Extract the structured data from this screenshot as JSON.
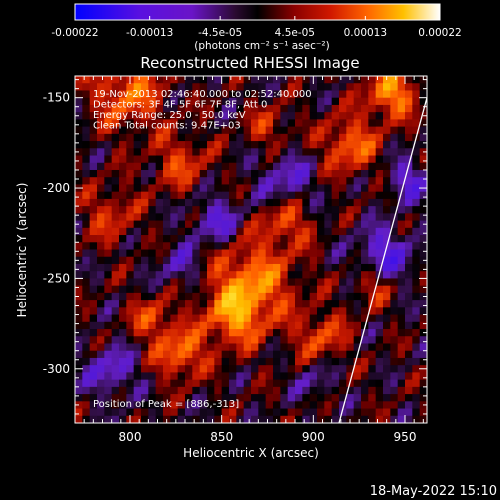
{
  "colorbar": {
    "ticks": [
      "-0.00022",
      "-0.00013",
      "-4.5e-05",
      "4.5e-05",
      "0.00013",
      "0.00022"
    ],
    "tick_values": [
      -0.00022,
      -0.00013,
      -4.5e-05,
      4.5e-05,
      0.00013,
      0.00022
    ],
    "unit_label": "(photons cm⁻² s⁻¹ asec⁻²)",
    "colors": [
      "#0000ff",
      "#6a14e6",
      "#2a0a2a",
      "#000000",
      "#7a0000",
      "#c81400",
      "#ff5a00",
      "#ffb400",
      "#ffff50",
      "#ffffff"
    ]
  },
  "footer_timestamp": "18-May-2022 15:10",
  "chart_data": {
    "type": "heatmap",
    "title": "Reconstructed RHESSI Image",
    "xlabel": "Heliocentric X (arcsec)",
    "ylabel": "Heliocentric Y (arcsec)",
    "xlim": [
      770,
      962
    ],
    "ylim": [
      -330,
      -138
    ],
    "xticks": [
      "800",
      "850",
      "900",
      "950"
    ],
    "xtick_values": [
      800,
      850,
      900,
      950
    ],
    "yticks": [
      "-150",
      "-200",
      "-250",
      "-300"
    ],
    "ytick_values": [
      -150,
      -200,
      -250,
      -300
    ],
    "annotations": [
      "19-Nov-2013 02:46:40.000 to 02:52:40.000",
      "Detectors: 3F 4F 5F 6F 7F 8F, Att 0",
      "Energy Range: 25.0 - 50.0 keV",
      "Clean     Total counts: 9.47E+03"
    ],
    "peak_label": "Position of Peak = [886,-313]",
    "peak": [
      886,
      -313
    ],
    "limb_line": [
      [
        962,
        -150
      ],
      [
        914,
        -330
      ]
    ],
    "value_range": [
      -0.00022,
      0.00022
    ]
  }
}
